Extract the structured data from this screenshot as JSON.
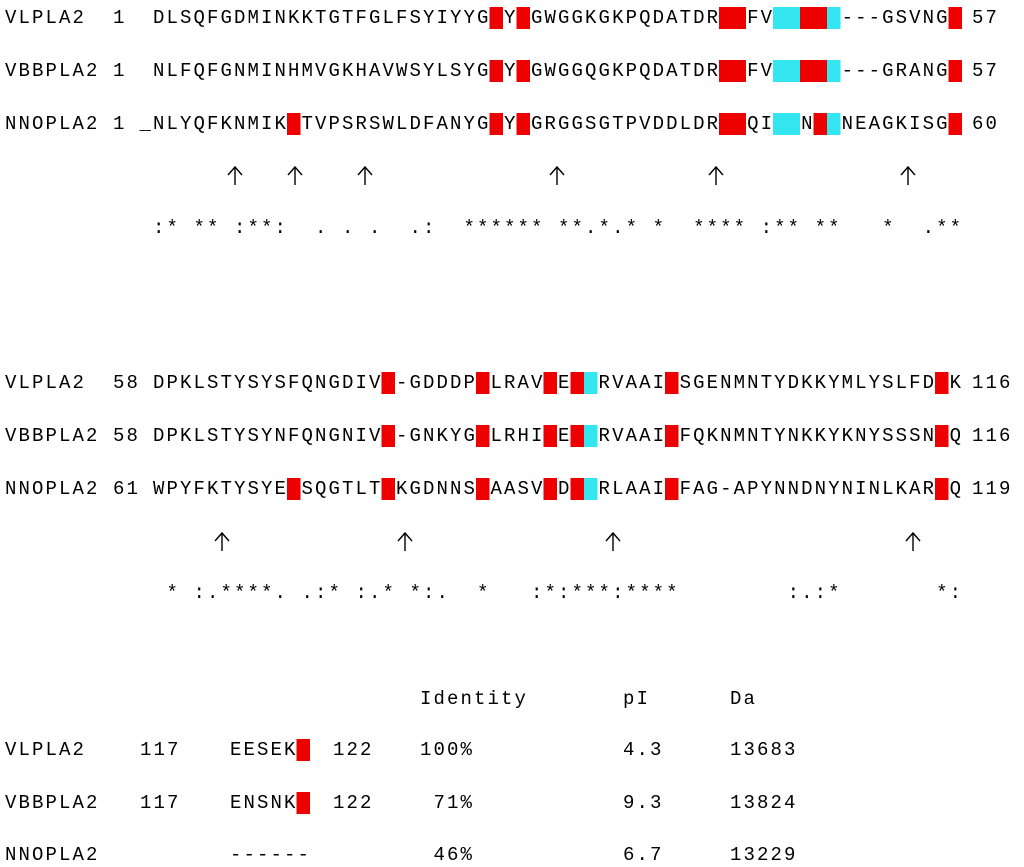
{
  "blocks": [
    {
      "rows": [
        {
          "name": "VLPLA2",
          "start": "1",
          "sequence": "DLSQFGDMINKKTGTFGLFSYIYYGCYCGWGGKGKPQDATDRCCFVHDCCY---GSVNGC",
          "end": "57"
        },
        {
          "name": "VBBPLA2",
          "start": "1",
          "sequence": "NLFQFGNMINHMVGKHAVWSYLSYGCYCGWGGQGKPQDATDRCCFVHDCCY---GRANGC",
          "end": "57"
        },
        {
          "name": "NNOPLA2",
          "start": "1",
          "sequence": "_NLYQFKNMIKCTVPSRSWLDFANYGCYCGRGGSGTPVDDLDRCCQIHDNCYNEAGKISGC",
          "end": "60"
        }
      ],
      "conservation": ":* ** :**:  . . .  .:  ****** **.*.* *  **** :** **   *  .**"
    },
    {
      "rows": [
        {
          "name": "VLPLA2",
          "start": "58",
          "sequence": "DPKLSTYSYSFQNGDIVC-GDDDPCLRAVCECDRVAAICSGENMNTYDKKYMLYSLFDCK",
          "end": "116"
        },
        {
          "name": "VBBPLA2",
          "start": "58",
          "sequence": "DPKLSTYSYNFQNGNIVC-GNKYGCLRHICECDRVAAICFQKNMNTYNKKYKNYSSSNCQ",
          "end": "116"
        },
        {
          "name": "NNOPLA2",
          "start": "61",
          "sequence": "WPYFKTYSYECSQGTLTCKGDNNSCAASVCDCDRLAAICFAG-APYNNDNYNINLKARCQ",
          "end": "119"
        }
      ],
      "conservation": " * :.****. .:* :.* *:.  *   :*:***:****        :.:*       *:"
    }
  ],
  "summary": {
    "headers": [
      "Identity",
      "pI",
      "Da"
    ],
    "rows": [
      {
        "name": "VLPLA2",
        "start": "117",
        "sequence": "EESEKC",
        "end": "122",
        "identity": "100%",
        "pI": "4.3",
        "Da": "13683"
      },
      {
        "name": "VBBPLA2",
        "start": "117",
        "sequence": "ENSNKC",
        "end": "122",
        "identity": "71%",
        "pI": "9.3",
        "Da": "13824"
      },
      {
        "name": "NNOPLA2",
        "sequence": "------",
        "identity": "46%",
        "pI": "6.7",
        "Da": "13229"
      }
    ]
  }
}
